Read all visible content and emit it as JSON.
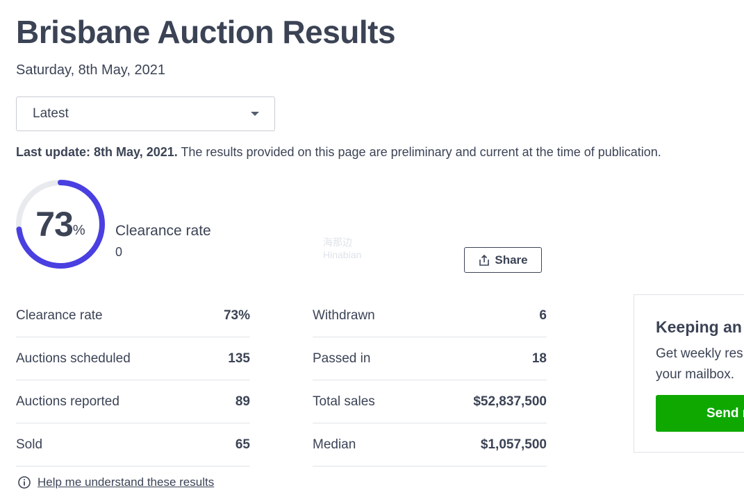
{
  "page": {
    "title": "Brisbane Auction Results",
    "date": "Saturday, 8th May, 2021"
  },
  "filter": {
    "selected": "Latest"
  },
  "update": {
    "bold": "Last update: 8th May, 2021.",
    "text": " The results provided on this page are preliminary and current at the time of publication."
  },
  "clearance": {
    "value": "73",
    "symbol": "%",
    "fraction": 0.73,
    "label": "Clearance rate",
    "sub": "0",
    "ring_color": "#4a3fe0",
    "track_color": "#e8eaee"
  },
  "share": {
    "label": "Share",
    "icon": "share-icon"
  },
  "stats_left": [
    {
      "label": "Clearance rate",
      "value": "73%"
    },
    {
      "label": "Auctions scheduled",
      "value": "135"
    },
    {
      "label": "Auctions reported",
      "value": "89"
    },
    {
      "label": "Sold",
      "value": "65"
    }
  ],
  "stats_right": [
    {
      "label": "Withdrawn",
      "value": "6"
    },
    {
      "label": "Passed in",
      "value": "18"
    },
    {
      "label": "Total sales",
      "value": "$52,837,500"
    },
    {
      "label": "Median",
      "value": "$1,057,500"
    }
  ],
  "help": {
    "label": "Help me understand these results",
    "icon": "info-icon"
  },
  "newsletter": {
    "title": "Keeping an",
    "text_line1": "Get weekly res",
    "text_line2": "your mailbox.",
    "button": "Send r",
    "button_color": "#0ea800"
  },
  "watermark": {
    "line1": "海那边",
    "line2": "Hinabian"
  }
}
